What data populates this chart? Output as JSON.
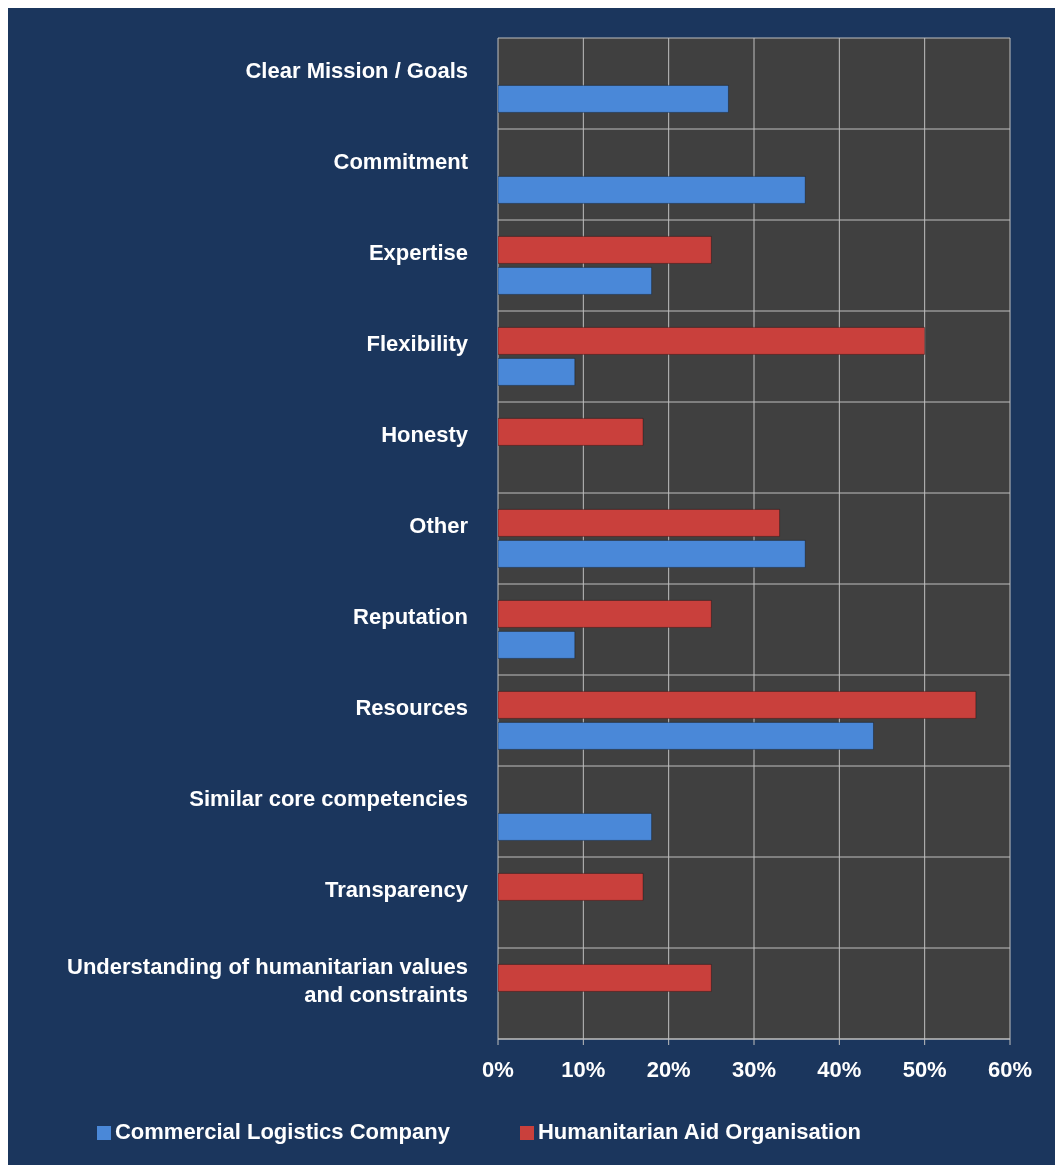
{
  "chart_data": {
    "type": "bar",
    "orientation": "horizontal",
    "categories": [
      "Clear Mission / Goals",
      "Commitment",
      "Expertise",
      "Flexibility",
      "Honesty",
      "Other",
      "Reputation",
      "Resources",
      "Similar core competencies",
      "Transparency",
      "Understanding of humanitarian values and constraints"
    ],
    "series": [
      {
        "name": "Humanitarian Aid Organisation",
        "color": "#c9403c",
        "values": [
          null,
          null,
          25,
          50,
          17,
          33,
          25,
          56,
          null,
          17,
          25
        ]
      },
      {
        "name": "Commercial Logistics Company",
        "color": "#4a88d8",
        "values": [
          27,
          36,
          18,
          9,
          null,
          36,
          9,
          44,
          18,
          null,
          null
        ]
      }
    ],
    "xlim": [
      0,
      60
    ],
    "xticks": [
      {
        "value": 0,
        "label": "0%"
      },
      {
        "value": 10,
        "label": "10%"
      },
      {
        "value": 20,
        "label": "20%"
      },
      {
        "value": 30,
        "label": "30%"
      },
      {
        "value": 40,
        "label": "40%"
      },
      {
        "value": 50,
        "label": "50%"
      },
      {
        "value": 60,
        "label": "60%"
      }
    ],
    "grid": true,
    "legend": "bottom"
  }
}
